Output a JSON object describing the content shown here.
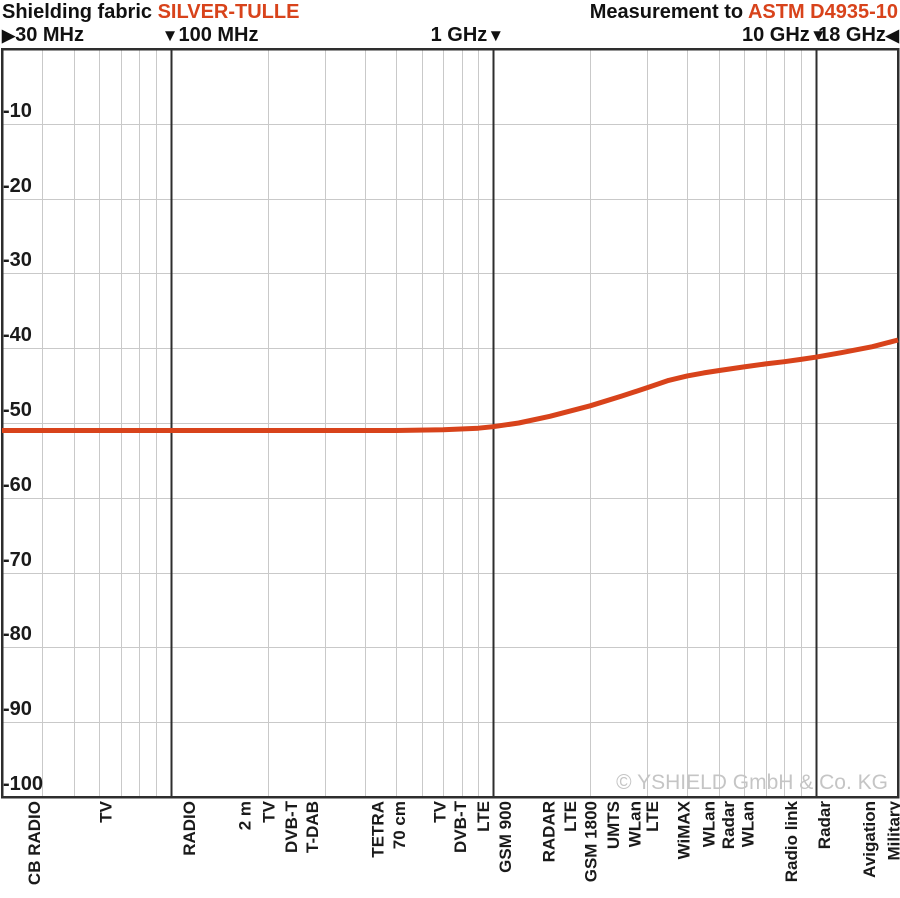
{
  "header": {
    "left_label": "Shielding fabric",
    "left_value": "SILVER-TULLE",
    "right_label": "Measurement to",
    "right_value": "ASTM D4935-10",
    "accent_color": "#d8431b"
  },
  "watermark": "© YSHIELD GmbH & Co. KG",
  "chart_data": {
    "type": "line",
    "title": "Shielding fabric SILVER-TULLE — Measurement to ASTM D4935-10",
    "x_scale": "log",
    "x_unit": "MHz",
    "xlim_mhz": [
      30,
      18000
    ],
    "y_unit": "dB",
    "ylim": [
      -100,
      0
    ],
    "grid": true,
    "ytick_labels": [
      "-10",
      "-20",
      "-30",
      "-40",
      "-50",
      "-60",
      "-70",
      "-80",
      "-90",
      "-100"
    ],
    "ytick_values": [
      -10,
      -20,
      -30,
      -40,
      -50,
      -60,
      -70,
      -80,
      -90,
      -100
    ],
    "freq_axis_labels": [
      {
        "text": "30 MHz",
        "f_mhz": 30,
        "arrow": "▶",
        "arrow_before": true,
        "edge": "left"
      },
      {
        "text": "100 MHz",
        "f_mhz": 100,
        "arrow": "▼",
        "arrow_before": true,
        "edge": ""
      },
      {
        "text": "1 GHz",
        "f_mhz": 1000,
        "arrow": "▼",
        "arrow_before": false,
        "edge": ""
      },
      {
        "text": "10 GHz",
        "f_mhz": 10000,
        "arrow": "▼",
        "arrow_before": false,
        "edge": ""
      },
      {
        "text": "18 GHz",
        "f_mhz": 18000,
        "arrow": "◀",
        "arrow_before": false,
        "edge": "right"
      }
    ],
    "major_gridlines_mhz": [
      100,
      1000,
      10000
    ],
    "minor_gridlines_mhz": [
      40,
      50,
      60,
      70,
      80,
      90,
      200,
      300,
      400,
      500,
      600,
      700,
      800,
      900,
      2000,
      3000,
      4000,
      5000,
      6000,
      7000,
      8000,
      9000
    ],
    "series": [
      {
        "name": "SILVER-TULLE shielding attenuation",
        "color": "#d8431b",
        "points_mhz_db": [
          [
            30,
            -51.0
          ],
          [
            100,
            -51.0
          ],
          [
            200,
            -51.0
          ],
          [
            300,
            -51.0
          ],
          [
            500,
            -51.0
          ],
          [
            700,
            -50.9
          ],
          [
            900,
            -50.7
          ],
          [
            1000,
            -50.5
          ],
          [
            1200,
            -50.0
          ],
          [
            1500,
            -49.1
          ],
          [
            2000,
            -47.7
          ],
          [
            2500,
            -46.4
          ],
          [
            3000,
            -45.3
          ],
          [
            3500,
            -44.3
          ],
          [
            4000,
            -43.7
          ],
          [
            4500,
            -43.3
          ],
          [
            5000,
            -43.0
          ],
          [
            6000,
            -42.5
          ],
          [
            7000,
            -42.1
          ],
          [
            8000,
            -41.8
          ],
          [
            9000,
            -41.5
          ],
          [
            10000,
            -41.2
          ],
          [
            12000,
            -40.6
          ],
          [
            15000,
            -39.8
          ],
          [
            18000,
            -38.9
          ]
        ]
      }
    ],
    "band_labels": [
      {
        "label": "CB RADIO",
        "f_mhz": 33
      },
      {
        "label": "TV",
        "f_mhz": 55
      },
      {
        "label": "RADIO",
        "f_mhz": 100
      },
      {
        "label": "2 m",
        "f_mhz": 148
      },
      {
        "label": "TV",
        "f_mhz": 177
      },
      {
        "label": "DVB-T",
        "f_mhz": 207
      },
      {
        "label": "T-DAB",
        "f_mhz": 240
      },
      {
        "label": "TETRA",
        "f_mhz": 385
      },
      {
        "label": "70 cm",
        "f_mhz": 448
      },
      {
        "label": "TV",
        "f_mhz": 597
      },
      {
        "label": "DVB-T",
        "f_mhz": 690
      },
      {
        "label": "LTE",
        "f_mhz": 812
      },
      {
        "label": "GSM 900",
        "f_mhz": 952
      },
      {
        "label": "RADAR",
        "f_mhz": 1300
      },
      {
        "label": "LTE",
        "f_mhz": 1515
      },
      {
        "label": "GSM 1800",
        "f_mhz": 1750
      },
      {
        "label": "UMTS",
        "f_mhz": 2060
      },
      {
        "label": "WLan",
        "f_mhz": 2400
      },
      {
        "label": "LTE",
        "f_mhz": 2730
      },
      {
        "label": "WiMAX",
        "f_mhz": 3400
      },
      {
        "label": "WLan",
        "f_mhz": 4080
      },
      {
        "label": "Radar",
        "f_mhz": 4700
      },
      {
        "label": "WLan",
        "f_mhz": 5370
      },
      {
        "label": "Radio link",
        "f_mhz": 7350
      },
      {
        "label": "Radar",
        "f_mhz": 9300
      },
      {
        "label": "Avigation",
        "f_mhz": 12800
      },
      {
        "label": "Military",
        "f_mhz": 15300
      }
    ],
    "style": {
      "curve_color": "#d8431b",
      "major_grid_color": "#2e2e2e",
      "minor_grid_color": "#c9c9c9",
      "plot_border_color": "#2e2e2e"
    }
  }
}
